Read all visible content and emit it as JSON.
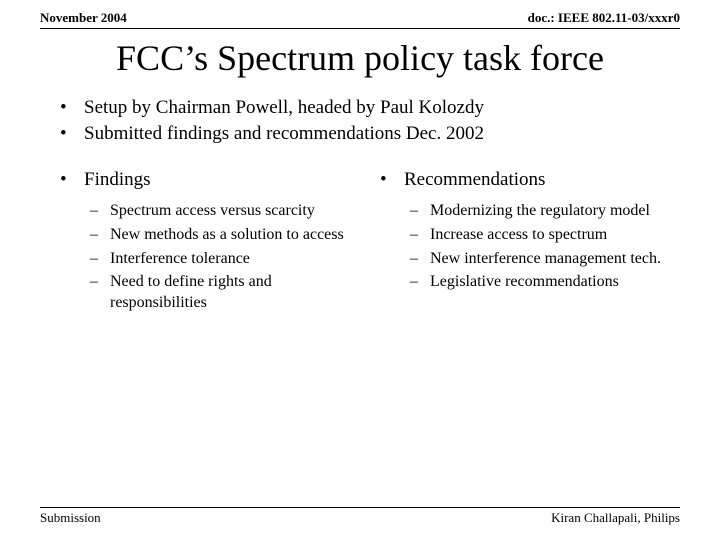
{
  "header": {
    "left": "November 2004",
    "right": "doc.: IEEE 802.11-03/xxxr0"
  },
  "title": "FCC’s Spectrum policy task force",
  "topBullets": [
    "Setup by Chairman Powell, headed by Paul Kolozdy",
    "Submitted findings and recommendations Dec. 2002"
  ],
  "columns": [
    {
      "heading": "Findings",
      "items": [
        "Spectrum access versus scarcity",
        "New methods as a solution to access",
        "Interference tolerance",
        "Need to define rights and responsibilities"
      ]
    },
    {
      "heading": "Recommendations",
      "items": [
        "Modernizing the regulatory model",
        "Increase access to spectrum",
        "New interference management tech.",
        "Legislative recommendations"
      ]
    }
  ],
  "footer": {
    "left": "Submission",
    "right": "Kiran Challapali, Philips"
  },
  "style": {
    "background_color": "#ffffff",
    "text_color": "#000000",
    "font_family": "Times New Roman",
    "title_fontsize": 36,
    "body_fontsize": 19,
    "sub_fontsize": 16,
    "header_fontsize": 13,
    "bullet_glyph": "•",
    "dash_glyph": "–",
    "rule_color": "#000000"
  }
}
